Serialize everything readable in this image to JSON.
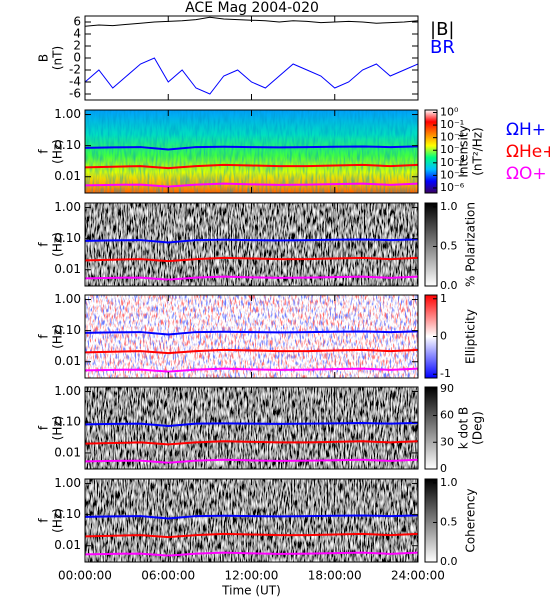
{
  "chart_data": [
    {
      "type": "line",
      "title": "ACE Mag 2004-020",
      "ylabel": [
        "B",
        "(nT)"
      ],
      "x": [
        0,
        1,
        2,
        3,
        4,
        5,
        6,
        7,
        8,
        9,
        10,
        11,
        12,
        13,
        14,
        15,
        16,
        17,
        18,
        19,
        20,
        21,
        22,
        23,
        24
      ],
      "xlim": [
        0,
        24
      ],
      "xticks": [
        0,
        6,
        12,
        18,
        24
      ],
      "ylim": [
        -7,
        7
      ],
      "yticks": [
        -6,
        -4,
        -2,
        0,
        2,
        4,
        6
      ],
      "series": [
        {
          "name": "|B|",
          "color": "#000000",
          "values": [
            5.3,
            5.5,
            5.4,
            5.6,
            5.8,
            6.0,
            6.1,
            6.2,
            6.4,
            6.8,
            6.5,
            6.4,
            6.3,
            6.2,
            6.0,
            6.2,
            6.1,
            5.9,
            6.0,
            6.1,
            6.0,
            5.8,
            5.9,
            6.0,
            6.2
          ]
        },
        {
          "name": "BR",
          "color": "#0000ff",
          "values": [
            -4,
            -2,
            -5,
            -3,
            -1,
            0,
            -4,
            -2,
            -5,
            -6,
            -3,
            -2,
            -4,
            -5,
            -3,
            -1,
            -2,
            -3,
            -5,
            -4,
            -2,
            -1,
            -3,
            -2,
            -1
          ]
        }
      ]
    },
    {
      "type": "spectrogram",
      "ylabel": [
        "f",
        "(Hz)"
      ],
      "log_y": true,
      "x": [
        0,
        2,
        4,
        6,
        8,
        10,
        12,
        14,
        16,
        18,
        20,
        22,
        24
      ],
      "xlim": [
        0,
        24
      ],
      "xticks": [
        0,
        6,
        12,
        18,
        24
      ],
      "ylim": [
        0.003,
        1.4
      ],
      "yticks": [
        {
          "value": 1,
          "label": "1.00"
        },
        {
          "value": 0.1,
          "label": "0.10"
        },
        {
          "value": 0.01,
          "label": "0.01"
        }
      ],
      "colorbar": {
        "label": [
          "Intensity",
          "(nT²/Hz)"
        ],
        "lim": [
          -6.4,
          0.2
        ],
        "ticks": [
          {
            "value": 0,
            "label": "10⁰"
          },
          {
            "value": -1,
            "label": "10⁻¹"
          },
          {
            "value": -2,
            "label": "10⁻²"
          },
          {
            "value": -3,
            "label": "10⁻³"
          },
          {
            "value": -4,
            "label": "10⁻⁴"
          },
          {
            "value": -5,
            "label": "10⁻⁵"
          },
          {
            "value": -6,
            "label": "10⁻⁶"
          }
        ],
        "colors": [
          "#3a0060",
          "#0000ff",
          "#00c0ff",
          "#00ff80",
          "#ffff00",
          "#ff8000",
          "#ff0000",
          "#ffffff"
        ]
      },
      "series": [
        {
          "name": "ΩH+",
          "color": "#0000ff",
          "values": [
            0.085,
            0.088,
            0.09,
            0.075,
            0.09,
            0.092,
            0.09,
            0.088,
            0.09,
            0.092,
            0.094,
            0.09,
            0.095
          ]
        },
        {
          "name": "ΩHe+",
          "color": "#ff0000",
          "values": [
            0.02,
            0.021,
            0.022,
            0.019,
            0.022,
            0.024,
            0.023,
            0.022,
            0.022,
            0.023,
            0.024,
            0.022,
            0.024
          ]
        },
        {
          "name": "ΩO+",
          "color": "#ff00ff",
          "values": [
            0.0053,
            0.0055,
            0.0056,
            0.0048,
            0.0056,
            0.006,
            0.0057,
            0.0055,
            0.0056,
            0.0058,
            0.006,
            0.0055,
            0.006
          ]
        }
      ]
    },
    {
      "type": "spectrogram",
      "ylabel": [
        "f",
        "(Hz)"
      ],
      "log_y": true,
      "x": [
        0,
        2,
        4,
        6,
        8,
        10,
        12,
        14,
        16,
        18,
        20,
        22,
        24
      ],
      "xlim": [
        0,
        24
      ],
      "xticks": [
        0,
        6,
        12,
        18,
        24
      ],
      "ylim": [
        0.003,
        1.4
      ],
      "yticks": [
        {
          "value": 1,
          "label": "1.00"
        },
        {
          "value": 0.1,
          "label": "0.10"
        },
        {
          "value": 0.01,
          "label": "0.01"
        }
      ],
      "colorbar": {
        "label": [
          "% Polarization"
        ],
        "lim": [
          0,
          1.05
        ],
        "ticks": [
          {
            "value": 0,
            "label": "0.0"
          },
          {
            "value": 0.5,
            "label": "0.5"
          },
          {
            "value": 1,
            "label": "1.0"
          }
        ],
        "colors": [
          "#ffffff",
          "#000000"
        ]
      },
      "series": [
        {
          "color": "#0000ff",
          "values": [
            0.085,
            0.088,
            0.09,
            0.075,
            0.09,
            0.092,
            0.09,
            0.088,
            0.09,
            0.092,
            0.094,
            0.09,
            0.095
          ]
        },
        {
          "color": "#ff0000",
          "values": [
            0.02,
            0.021,
            0.022,
            0.019,
            0.022,
            0.024,
            0.023,
            0.022,
            0.022,
            0.023,
            0.024,
            0.022,
            0.024
          ]
        },
        {
          "color": "#ff00ff",
          "values": [
            0.0053,
            0.0055,
            0.0056,
            0.0048,
            0.0056,
            0.006,
            0.0057,
            0.0055,
            0.0056,
            0.0058,
            0.006,
            0.0055,
            0.006
          ]
        }
      ]
    },
    {
      "type": "spectrogram",
      "ylabel": [
        "f",
        "(Hz)"
      ],
      "log_y": true,
      "x": [
        0,
        2,
        4,
        6,
        8,
        10,
        12,
        14,
        16,
        18,
        20,
        22,
        24
      ],
      "xlim": [
        0,
        24
      ],
      "xticks": [
        0,
        6,
        12,
        18,
        24
      ],
      "ylim": [
        0.003,
        1.4
      ],
      "yticks": [
        {
          "value": 1,
          "label": "1.00"
        },
        {
          "value": 0.1,
          "label": "0.10"
        },
        {
          "value": 0.01,
          "label": "0.01"
        }
      ],
      "colorbar": {
        "label": [
          "Ellipticity"
        ],
        "lim": [
          -1.1,
          1.1
        ],
        "ticks": [
          1,
          0,
          -1
        ],
        "colors": [
          "#0000ff",
          "#ffffff",
          "#ff0000"
        ]
      },
      "series": [
        {
          "color": "#0000ff",
          "values": [
            0.085,
            0.088,
            0.09,
            0.075,
            0.09,
            0.092,
            0.09,
            0.088,
            0.09,
            0.092,
            0.094,
            0.09,
            0.095
          ]
        },
        {
          "color": "#ff0000",
          "values": [
            0.02,
            0.021,
            0.022,
            0.019,
            0.022,
            0.024,
            0.023,
            0.022,
            0.022,
            0.023,
            0.024,
            0.022,
            0.024
          ]
        },
        {
          "color": "#ff00ff",
          "values": [
            0.0053,
            0.0055,
            0.0056,
            0.0048,
            0.0056,
            0.006,
            0.0057,
            0.0055,
            0.0056,
            0.0058,
            0.006,
            0.0055,
            0.006
          ]
        }
      ]
    },
    {
      "type": "spectrogram",
      "ylabel": [
        "f",
        "(Hz)"
      ],
      "log_y": true,
      "x": [
        0,
        2,
        4,
        6,
        8,
        10,
        12,
        14,
        16,
        18,
        20,
        22,
        24
      ],
      "xlim": [
        0,
        24
      ],
      "xticks": [
        0,
        6,
        12,
        18,
        24
      ],
      "ylim": [
        0.003,
        1.4
      ],
      "yticks": [
        {
          "value": 1,
          "label": "1.00"
        },
        {
          "value": 0.1,
          "label": "0.10"
        },
        {
          "value": 0.01,
          "label": "0.01"
        }
      ],
      "colorbar": {
        "label": [
          "k dot B",
          "(Deg)"
        ],
        "lim": [
          0,
          92
        ],
        "ticks": [
          90,
          60,
          30,
          0
        ],
        "colors": [
          "#ffffff",
          "#000000"
        ]
      },
      "series": [
        {
          "color": "#0000ff",
          "values": [
            0.085,
            0.088,
            0.09,
            0.075,
            0.09,
            0.092,
            0.09,
            0.088,
            0.09,
            0.092,
            0.094,
            0.09,
            0.095
          ]
        },
        {
          "color": "#ff0000",
          "values": [
            0.02,
            0.021,
            0.022,
            0.019,
            0.022,
            0.024,
            0.023,
            0.022,
            0.022,
            0.023,
            0.024,
            0.022,
            0.024
          ]
        },
        {
          "color": "#ff00ff",
          "values": [
            0.0053,
            0.0055,
            0.0056,
            0.0048,
            0.0056,
            0.006,
            0.0057,
            0.0055,
            0.0056,
            0.0058,
            0.006,
            0.0055,
            0.006
          ]
        }
      ]
    },
    {
      "type": "spectrogram",
      "ylabel": [
        "f",
        "(Hz)"
      ],
      "log_y": true,
      "xlabel": "Time (UT)",
      "x": [
        0,
        2,
        4,
        6,
        8,
        10,
        12,
        14,
        16,
        18,
        20,
        22,
        24
      ],
      "xlim": [
        0,
        24
      ],
      "xticks": [
        {
          "value": 0,
          "label": "00:00:00"
        },
        {
          "value": 6,
          "label": "06:00:00"
        },
        {
          "value": 12,
          "label": "12:00:00"
        },
        {
          "value": 18,
          "label": "18:00:00"
        },
        {
          "value": 24,
          "label": "24:00:00"
        }
      ],
      "ylim": [
        0.003,
        1.4
      ],
      "yticks": [
        {
          "value": 1,
          "label": "1.00"
        },
        {
          "value": 0.1,
          "label": "0.10"
        },
        {
          "value": 0.01,
          "label": "0.01"
        }
      ],
      "colorbar": {
        "label": [
          "Coherency"
        ],
        "lim": [
          0,
          1.05
        ],
        "ticks": [
          {
            "value": 0,
            "label": "0.0"
          },
          {
            "value": 0.5,
            "label": "0.5"
          },
          {
            "value": 1,
            "label": "1.0"
          }
        ],
        "colors": [
          "#ffffff",
          "#000000"
        ]
      },
      "series": [
        {
          "color": "#0000ff",
          "values": [
            0.085,
            0.088,
            0.09,
            0.075,
            0.09,
            0.092,
            0.09,
            0.088,
            0.09,
            0.092,
            0.094,
            0.09,
            0.095
          ]
        },
        {
          "color": "#ff0000",
          "values": [
            0.02,
            0.021,
            0.022,
            0.019,
            0.022,
            0.024,
            0.023,
            0.022,
            0.022,
            0.023,
            0.024,
            0.022,
            0.024
          ]
        },
        {
          "color": "#ff00ff",
          "values": [
            0.0053,
            0.0055,
            0.0056,
            0.0048,
            0.0056,
            0.006,
            0.0057,
            0.0055,
            0.0056,
            0.0058,
            0.006,
            0.0055,
            0.006
          ]
        }
      ]
    }
  ]
}
